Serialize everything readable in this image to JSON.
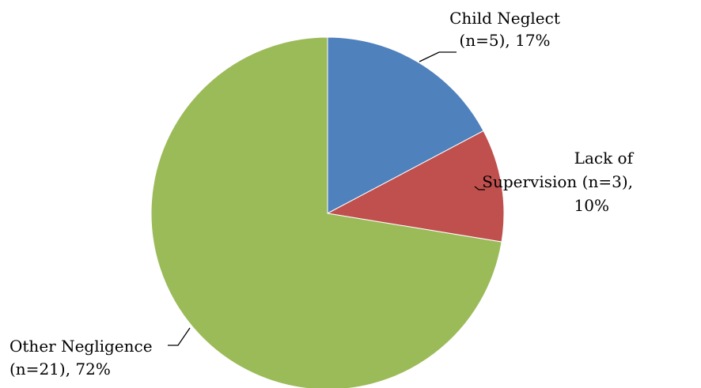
{
  "chart_data": {
    "type": "pie",
    "slices": [
      {
        "category": "Child Neglect",
        "n": 5,
        "percent": 17,
        "label_lines": [
          "Child Neglect",
          "(n=5), 17%"
        ],
        "color": "#4F81BD"
      },
      {
        "category": "Lack of Supervision",
        "n": 3,
        "percent": 10,
        "label_lines": [
          "Lack of",
          "Supervision (n=3),",
          "10%"
        ],
        "color": "#C0504D"
      },
      {
        "category": "Other Negligence",
        "n": 21,
        "percent": 72,
        "label_lines": [
          "Other Negligence",
          "(n=21), 72%"
        ],
        "color": "#9BBB59"
      }
    ],
    "start_angle_deg": 0,
    "direction": "clockwise",
    "legend": "none"
  }
}
